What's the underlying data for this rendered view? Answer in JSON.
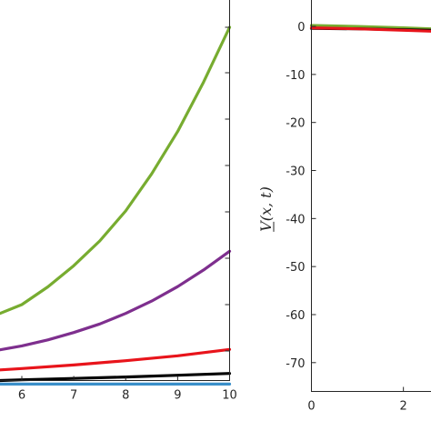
{
  "chart_data": [
    {
      "type": "line",
      "title": "",
      "xlabel": "",
      "ylabel": "",
      "xlim": [
        5.58,
        10
      ],
      "ylim": [
        0.0,
        1.0
      ],
      "xticks": [
        6,
        7,
        8,
        9,
        10
      ],
      "grid": false,
      "legend": "none",
      "series": [
        {
          "color": "#77ac30",
          "x": [
            5.58,
            6,
            6.5,
            7,
            7.5,
            8,
            8.5,
            9,
            9.5,
            10
          ],
          "y": [
            0.19,
            0.215,
            0.265,
            0.325,
            0.395,
            0.48,
            0.585,
            0.705,
            0.845,
            1.0
          ]
        },
        {
          "color": "#7e2f8e",
          "x": [
            5.58,
            6,
            6.5,
            7,
            7.5,
            8,
            8.5,
            9,
            9.5,
            10
          ],
          "y": [
            0.087,
            0.098,
            0.115,
            0.136,
            0.16,
            0.19,
            0.225,
            0.266,
            0.313,
            0.366
          ]
        },
        {
          "color": "#e8141b",
          "x": [
            5.58,
            6,
            7,
            8,
            9,
            10
          ],
          "y": [
            0.03,
            0.034,
            0.044,
            0.056,
            0.07,
            0.088
          ]
        },
        {
          "color": "#000000",
          "x": [
            5.58,
            6,
            7,
            8,
            9,
            10
          ],
          "y": [
            0.0,
            0.002,
            0.006,
            0.01,
            0.015,
            0.02
          ]
        },
        {
          "color": "#3a8fc9",
          "x": [
            5.58,
            10
          ],
          "y": [
            -0.01,
            -0.01
          ]
        }
      ]
    },
    {
      "type": "line",
      "title": "",
      "xlabel": "",
      "ylabel": "V(x, t)",
      "ylabel_underline": true,
      "xlim": [
        0,
        2.6
      ],
      "ylim": [
        -76,
        5.5
      ],
      "yticks": [
        0,
        -10,
        -20,
        -30,
        -40,
        -50,
        -60,
        -70
      ],
      "xticks": [
        0,
        2
      ],
      "grid": false,
      "legend": "none",
      "series": [
        {
          "color": "#77ac30",
          "x": [
            0,
            1,
            2,
            2.6
          ],
          "y": [
            0.2,
            0.0,
            -0.3,
            -0.5
          ]
        },
        {
          "color": "#000000",
          "x": [
            0,
            1,
            2,
            2.6
          ],
          "y": [
            -0.4,
            -0.5,
            -0.7,
            -0.8
          ]
        },
        {
          "color": "#e8141b",
          "x": [
            0,
            1,
            2,
            2.6
          ],
          "y": [
            -0.3,
            -0.5,
            -0.8,
            -1.0
          ]
        }
      ]
    }
  ]
}
